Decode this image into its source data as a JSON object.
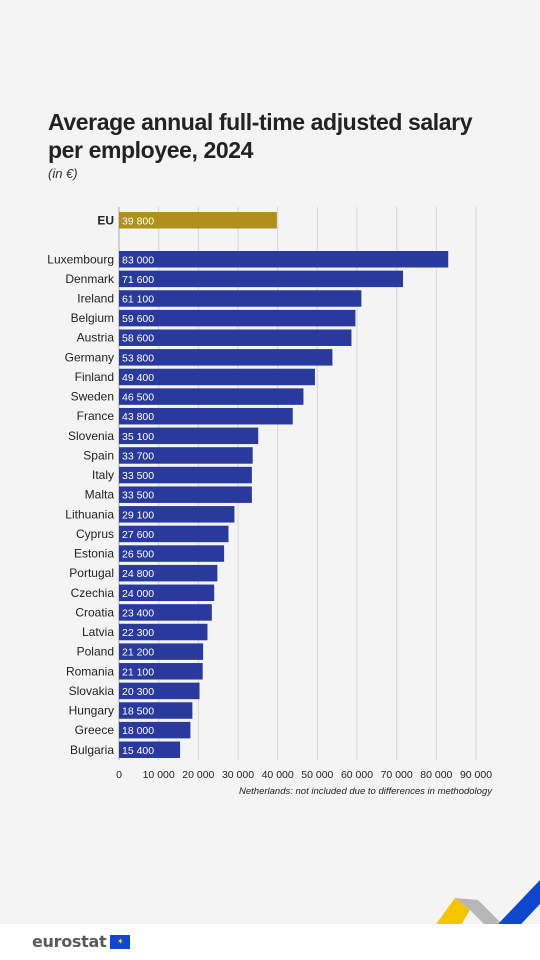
{
  "title_line1": "Average annual full-time adjusted salary",
  "title_line2": "per employee, 2024",
  "unit": "(in €)",
  "footnote": "Netherlands: not included due to differences in methodology",
  "brand": "eurostat",
  "colors": {
    "eu_bar": "#b0901c",
    "country_bar": "#2a3a9c",
    "grid": "#d6d6d6",
    "text": "#222222"
  },
  "chart_data": {
    "type": "bar",
    "orientation": "horizontal",
    "title": "Average annual full-time adjusted salary per employee, 2024",
    "unit": "(in €)",
    "xlim": [
      0,
      90000
    ],
    "xticks": [
      0,
      10000,
      20000,
      30000,
      40000,
      50000,
      60000,
      70000,
      80000,
      90000
    ],
    "xtick_labels": [
      "0",
      "10 000",
      "20 000",
      "30 000",
      "40 000",
      "50 000",
      "60 000",
      "70 000",
      "80 000",
      "90 000"
    ],
    "grid": true,
    "categories": [
      "EU",
      "Luxembourg",
      "Denmark",
      "Ireland",
      "Belgium",
      "Austria",
      "Germany",
      "Finland",
      "Sweden",
      "France",
      "Slovenia",
      "Spain",
      "Italy",
      "Malta",
      "Lithuania",
      "Cyprus",
      "Estonia",
      "Portugal",
      "Czechia",
      "Croatia",
      "Latvia",
      "Poland",
      "Romania",
      "Slovakia",
      "Hungary",
      "Greece",
      "Bulgaria"
    ],
    "values": [
      39800,
      83000,
      71600,
      61100,
      59600,
      58600,
      53800,
      49400,
      46500,
      43800,
      35100,
      33700,
      33500,
      33500,
      29100,
      27600,
      26500,
      24800,
      24000,
      23400,
      22300,
      21200,
      21100,
      20300,
      18500,
      18000,
      15400
    ],
    "value_labels": [
      "39 800",
      "83 000",
      "71 600",
      "61 100",
      "59 600",
      "58 600",
      "53 800",
      "49 400",
      "46 500",
      "43 800",
      "35 100",
      "33 700",
      "33 500",
      "33 500",
      "29 100",
      "27 600",
      "26 500",
      "24 800",
      "24 000",
      "23 400",
      "22 300",
      "21 200",
      "21 100",
      "20 300",
      "18 500",
      "18 000",
      "15 400"
    ]
  }
}
